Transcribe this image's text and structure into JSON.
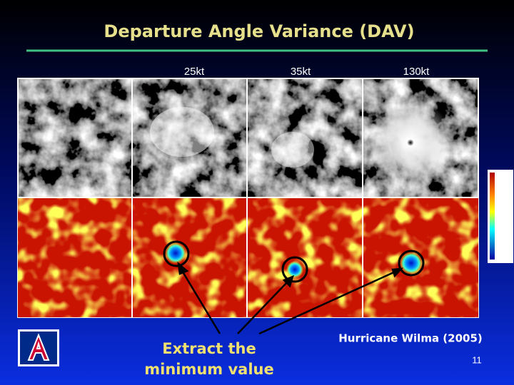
{
  "title": "Departure Angle Variance (DAV)",
  "columns": [
    "25kt",
    "35kt",
    "130kt"
  ],
  "caption": [
    "Extract the",
    "minimum value"
  ],
  "credit": "Hurricane Wilma (2005)",
  "page_number": "11"
}
